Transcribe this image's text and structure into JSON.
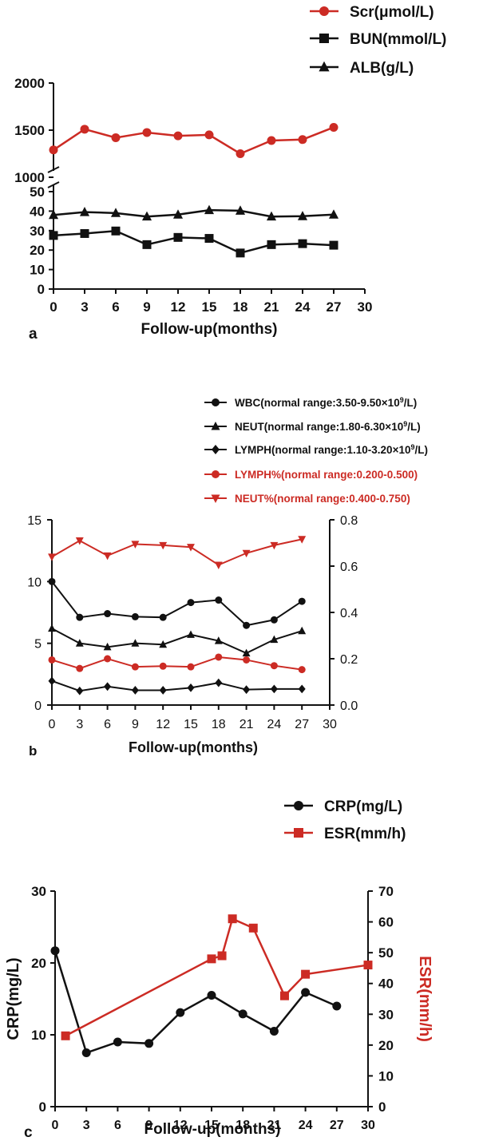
{
  "panels": {
    "a": {
      "letter": "a",
      "xlabel": "Follow-up(months)"
    },
    "b": {
      "letter": "b",
      "xlabel": "Follow-up(months)"
    },
    "c": {
      "letter": "c",
      "xlabel": "Follow-up(months)"
    }
  },
  "colors": {
    "black": "#111111",
    "red": "#cc2b24"
  },
  "chart_data": [
    {
      "panel": "a",
      "type": "line",
      "xlabel": "Follow-up(months)",
      "x_ticks": [
        0,
        3,
        6,
        9,
        12,
        15,
        18,
        21,
        24,
        27,
        30
      ],
      "xlim": [
        0,
        30
      ],
      "axis_break": true,
      "y_upper": {
        "ylim": [
          1000,
          2000
        ],
        "ticks": [
          1000,
          1500,
          2000
        ]
      },
      "y_lower": {
        "ylim": [
          0,
          50
        ],
        "ticks": [
          0,
          10,
          20,
          30,
          40,
          50
        ]
      },
      "legend_position": "top-right",
      "series": [
        {
          "name": "Scr(μmol/L)",
          "marker": "circle",
          "color": "#cc2b24",
          "segment": "upper",
          "x": [
            0,
            3,
            6,
            9,
            12,
            15,
            18,
            21,
            24,
            27
          ],
          "values": [
            1290,
            1510,
            1420,
            1475,
            1440,
            1450,
            1250,
            1390,
            1400,
            1530
          ]
        },
        {
          "name": "BUN(mmol/L)",
          "marker": "square",
          "color": "#111111",
          "segment": "lower",
          "x": [
            0,
            3,
            6,
            9,
            12,
            15,
            18,
            21,
            24,
            27
          ],
          "values": [
            27.5,
            28.5,
            29.8,
            22.8,
            26.5,
            26.0,
            18.5,
            22.8,
            23.3,
            22.5
          ]
        },
        {
          "name": "ALB(g/L)",
          "marker": "triangle",
          "color": "#111111",
          "segment": "lower",
          "x": [
            0,
            3,
            6,
            9,
            12,
            15,
            18,
            21,
            24,
            27
          ],
          "values": [
            38.0,
            39.5,
            39.0,
            37.2,
            38.2,
            40.5,
            40.2,
            37.2,
            37.4,
            38.2
          ]
        }
      ]
    },
    {
      "panel": "b",
      "type": "line",
      "xlabel": "Follow-up(months)",
      "x_ticks": [
        0,
        3,
        6,
        9,
        12,
        15,
        18,
        21,
        24,
        27,
        30
      ],
      "xlim": [
        0,
        30
      ],
      "y_left": {
        "ylim": [
          0,
          15
        ],
        "ticks": [
          0,
          5,
          10,
          15
        ]
      },
      "y_right": {
        "ylim": [
          0,
          0.8
        ],
        "ticks": [
          "0.0",
          "0.2",
          "0.4",
          "0.6",
          "0.8"
        ]
      },
      "legend_position": "top-right",
      "series": [
        {
          "name": "WBC(normal range:3.50-9.50×10",
          "unit_tail": "/L)",
          "marker": "circle",
          "color": "#111111",
          "axis": "left",
          "x": [
            0,
            3,
            6,
            9,
            12,
            15,
            18,
            21,
            24,
            27
          ],
          "values": [
            10.0,
            7.1,
            7.4,
            7.15,
            7.1,
            8.3,
            8.5,
            6.45,
            6.9,
            8.4
          ]
        },
        {
          "name": "NEUT(normal range:1.80-6.30×10",
          "unit_tail": "/L)",
          "marker": "triangle",
          "color": "#111111",
          "axis": "left",
          "x": [
            0,
            3,
            6,
            9,
            12,
            15,
            18,
            21,
            24,
            27
          ],
          "values": [
            6.2,
            5.0,
            4.7,
            5.0,
            4.9,
            5.7,
            5.2,
            4.2,
            5.3,
            6.0
          ]
        },
        {
          "name": "LYMPH(normal range:1.10-3.20×10",
          "unit_tail": "/L)",
          "marker": "diamond",
          "color": "#111111",
          "axis": "left",
          "x": [
            0,
            3,
            6,
            9,
            12,
            15,
            18,
            21,
            24,
            27
          ],
          "values": [
            1.95,
            1.15,
            1.5,
            1.2,
            1.2,
            1.4,
            1.8,
            1.25,
            1.3,
            1.3
          ]
        },
        {
          "name": "LYMPH%(normal range:0.200-0.500)",
          "marker": "circle",
          "color": "#cc2b24",
          "axis": "right",
          "x": [
            0,
            3,
            6,
            9,
            12,
            15,
            18,
            21,
            24,
            27
          ],
          "values": [
            0.195,
            0.158,
            0.2,
            0.165,
            0.168,
            0.165,
            0.207,
            0.195,
            0.17,
            0.153
          ]
        },
        {
          "name": "NEUT%(normal range:0.400-0.750)",
          "marker": "triangle-down",
          "color": "#cc2b24",
          "axis": "right",
          "x": [
            0,
            3,
            6,
            9,
            12,
            15,
            18,
            21,
            24,
            27
          ],
          "values": [
            0.64,
            0.71,
            0.645,
            0.695,
            0.69,
            0.682,
            0.605,
            0.656,
            0.69,
            0.716
          ]
        }
      ],
      "superscript": "9"
    },
    {
      "panel": "c",
      "type": "line",
      "xlabel": "Follow-up(months)",
      "x_ticks": [
        0,
        3,
        6,
        9,
        12,
        15,
        18,
        21,
        24,
        27,
        30
      ],
      "xlim": [
        0,
        30
      ],
      "y_left": {
        "label": "CRP(mg/L)",
        "ylim": [
          0,
          30
        ],
        "ticks": [
          0,
          10,
          20,
          30
        ]
      },
      "y_right": {
        "label": "ESR(mm/h)",
        "ylim": [
          0,
          70
        ],
        "ticks": [
          0,
          10,
          20,
          30,
          40,
          50,
          60,
          70
        ]
      },
      "legend_position": "top-right",
      "series": [
        {
          "name": "CRP(mg/L)",
          "marker": "circle",
          "color": "#111111",
          "axis": "left",
          "x": [
            0,
            3,
            6,
            9,
            12,
            15,
            18,
            21,
            24,
            27
          ],
          "values": [
            21.7,
            7.5,
            9.0,
            8.8,
            13.1,
            15.5,
            12.9,
            10.5,
            15.9,
            14.0
          ]
        },
        {
          "name": "ESR(mm/h)",
          "marker": "square",
          "color": "#cc2b24",
          "axis": "right",
          "x": [
            1,
            15,
            16,
            17,
            19,
            22,
            24,
            30
          ],
          "values": [
            23,
            48,
            49,
            61,
            58,
            36,
            43,
            46
          ]
        }
      ]
    }
  ]
}
